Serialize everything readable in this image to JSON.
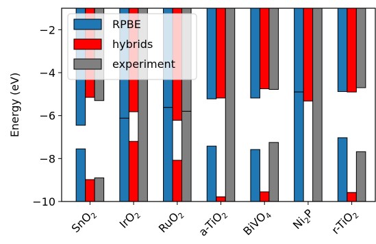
{
  "chart_data": {
    "type": "bar",
    "ylabel": "Energy (eV)",
    "ylim": [
      -10,
      -1
    ],
    "yticks": [
      -10,
      -8,
      -6,
      -4,
      -2
    ],
    "ytick_labels": [
      "−10",
      "−8",
      "−6",
      "−4",
      "−2"
    ],
    "grid": false,
    "legend_position": "top-left",
    "categories": [
      {
        "base": "SnO",
        "sub": "2"
      },
      {
        "base": "IrO",
        "sub": "2"
      },
      {
        "base": "RuO",
        "sub": "2"
      },
      {
        "base": "a-TiO",
        "sub": "2"
      },
      {
        "base": "BiVO",
        "sub": "4"
      },
      {
        "base": "Ni",
        "sub": "2",
        "post": "P"
      },
      {
        "base": "r-TiO",
        "sub": "2"
      }
    ],
    "series": [
      {
        "name": "RPBE",
        "color": "#1f77b4",
        "vbm": [
          -6.45,
          -6.12,
          -5.62,
          -5.22,
          -5.18,
          -4.9,
          -4.88
        ],
        "cbm": [
          -7.55,
          -6.12,
          -5.62,
          -7.42,
          -7.58,
          -4.9,
          -7.03
        ]
      },
      {
        "name": "hybrids",
        "color": "#ff0000",
        "vbm": [
          -5.15,
          -5.82,
          -6.22,
          -5.18,
          -4.75,
          -5.32,
          -4.9
        ],
        "cbm": [
          -8.98,
          -7.2,
          -8.08,
          -9.78,
          -9.55,
          -10.0,
          -9.58
        ]
      },
      {
        "name": "experiment",
        "color": "#808080",
        "vbm": [
          -5.3,
          -10.0,
          -5.8,
          -10.0,
          -4.78,
          -10.0,
          -4.7
        ],
        "cbm": [
          -8.9,
          -10.0,
          -5.8,
          -10.0,
          -7.25,
          -10.0,
          -7.68
        ]
      }
    ]
  }
}
